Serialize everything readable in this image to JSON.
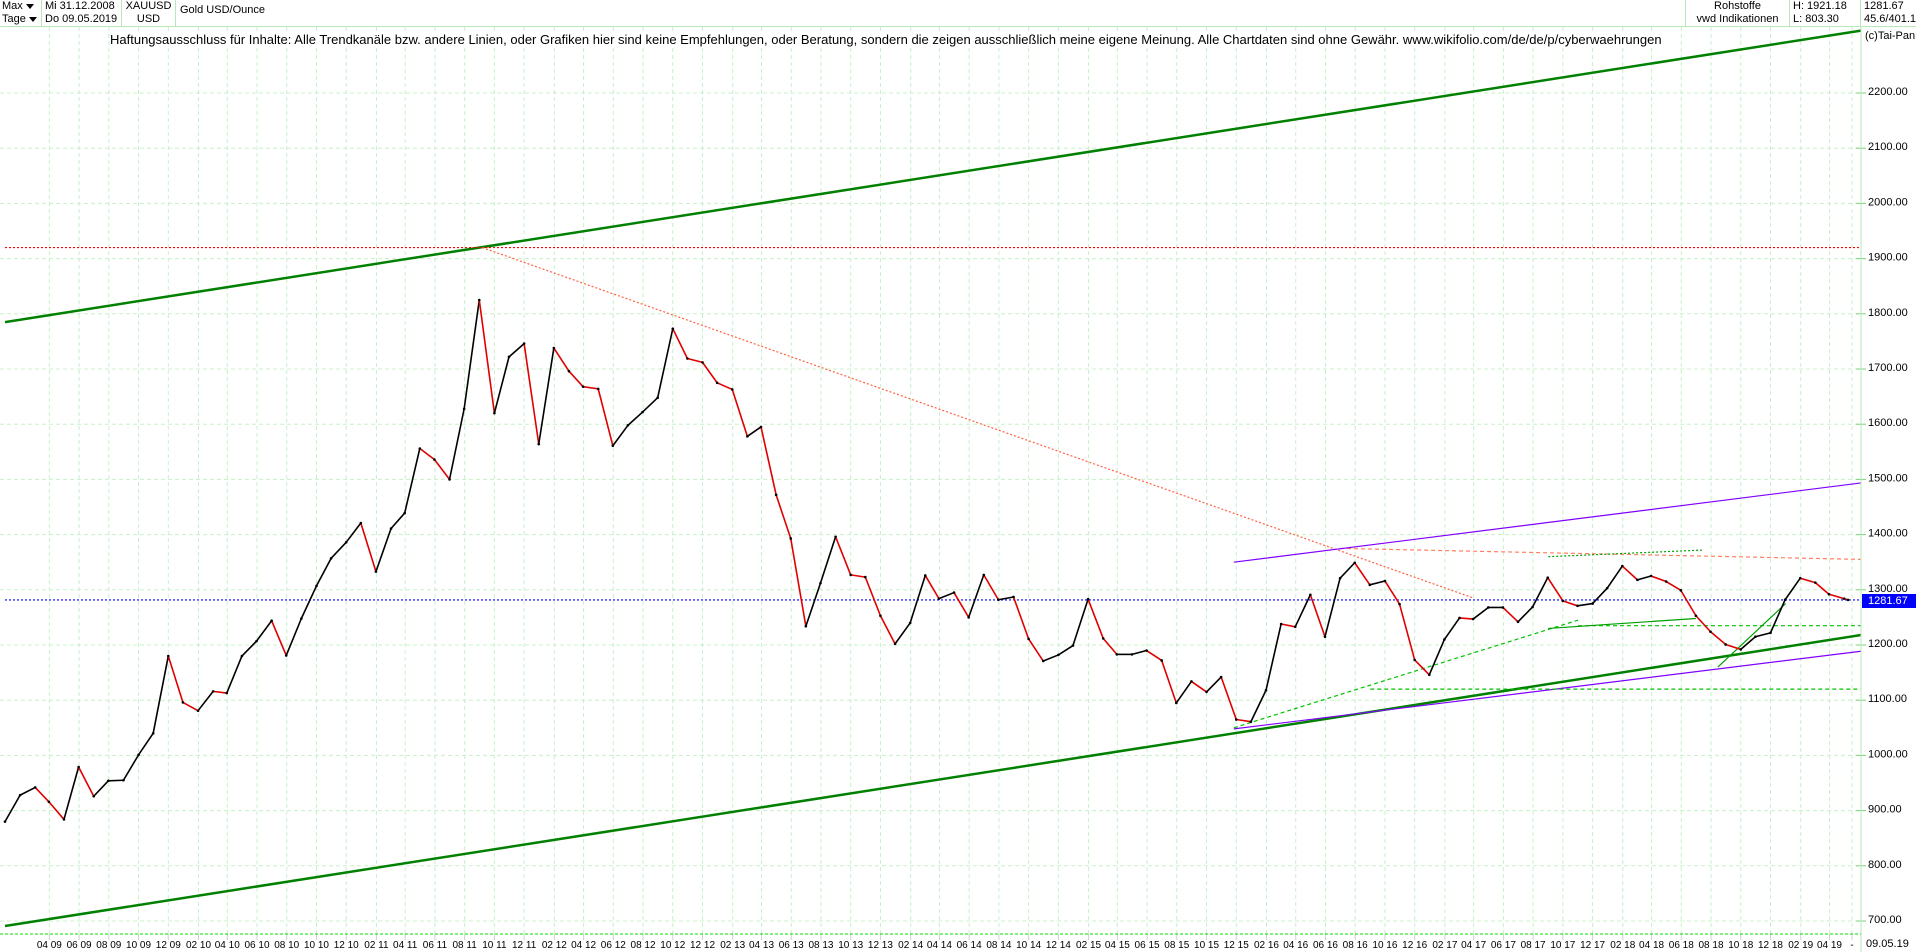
{
  "header": {
    "range_label": "Max",
    "interval_label": "Tage",
    "start_date": "Mi 31.12.2008",
    "end_date": "Do 09.05.2019",
    "symbol": "XAUUSD",
    "currency": "USD",
    "instrument": "Gold USD/Ounce",
    "category": "Rohstoffe",
    "source": "vwd Indikationen",
    "high": "H: 1921.18",
    "low": "L: 803.30",
    "last": "1281.67",
    "extra": "45.6/401.1",
    "copyright": "(c)Tai-Pan"
  },
  "disclaimer": "Haftungsausschluss für Inhalte: Alle Trendkanäle bzw. andere Linien, oder Grafiken hier sind keine Empfehlungen, oder Beratung, sondern die zeigen ausschließlich meine eigene Meinung. Alle Chartdaten sind ohne Gewähr.  www.wikifolio.com/de/de/p/cyberwaehrungen",
  "axis": {
    "current_price_label": "1281.67",
    "end_date_label": "09.05.19"
  },
  "chart_data": {
    "type": "line",
    "title": "Gold USD/Ounce",
    "ylim": [
      680,
      2330
    ],
    "xlim": [
      "2008-12-31",
      "2019-06-15"
    ],
    "y_ticks": [
      "700.00",
      "800.00",
      "900.00",
      "1000.00",
      "1100.00",
      "1200.00",
      "1300.00",
      "1400.00",
      "1500.00",
      "1600.00",
      "1700.00",
      "1800.00",
      "1900.00",
      "2000.00",
      "2100.00",
      "2200.00"
    ],
    "x_tick_labels": [
      "04 09",
      "06 09",
      "08 09",
      "10 09",
      "12 09",
      "02 10",
      "04 10",
      "06 10",
      "08 10",
      "10 10",
      "12 10",
      "02 11",
      "04 11",
      "06 11",
      "08 11",
      "10 11",
      "12 11",
      "02 12",
      "04 12",
      "06 12",
      "08 12",
      "10 12",
      "12 12",
      "02 13",
      "04 13",
      "06 13",
      "08 13",
      "10 13",
      "12 13",
      "02 14",
      "04 14",
      "06 14",
      "08 14",
      "10 14",
      "12 14",
      "02 15",
      "04 15",
      "06 15",
      "08 15",
      "10 15",
      "12 15",
      "02 16",
      "04 16",
      "06 16",
      "08 16",
      "10 16",
      "12 16",
      "02 17",
      "04 17",
      "06 17",
      "08 17",
      "10 17",
      "12 17",
      "02 18",
      "04 18",
      "06 18",
      "08 18",
      "10 18",
      "12 18",
      "02 19",
      "04 19",
      "-"
    ],
    "grid": true,
    "series": [
      {
        "start": "2008-12-31",
        "frequency": "monthly",
        "values": [
          880,
          928,
          942,
          916,
          884,
          979,
          926,
          954,
          955,
          1001,
          1040,
          1180,
          1096,
          1081,
          1116,
          1113,
          1180,
          1207,
          1244,
          1181,
          1248,
          1307,
          1357,
          1386,
          1421,
          1333,
          1411,
          1439,
          1556,
          1536,
          1500,
          1628,
          1825,
          1620,
          1722,
          1746,
          1564,
          1738,
          1696,
          1668,
          1664,
          1561,
          1598,
          1622,
          1648,
          1773,
          1719,
          1712,
          1675,
          1663,
          1578,
          1595,
          1472,
          1393,
          1234,
          1312,
          1396,
          1327,
          1323,
          1253,
          1202,
          1240,
          1326,
          1284,
          1295,
          1250,
          1327,
          1282,
          1287,
          1211,
          1171,
          1182,
          1199,
          1283,
          1212,
          1183,
          1183,
          1190,
          1172,
          1095,
          1134,
          1115,
          1142,
          1065,
          1061,
          1118,
          1238,
          1233,
          1291,
          1215,
          1321,
          1349,
          1309,
          1316,
          1274,
          1173,
          1146,
          1210,
          1249,
          1247,
          1268,
          1268,
          1242,
          1269,
          1322,
          1280,
          1271,
          1275,
          1303,
          1343,
          1318,
          1325,
          1315,
          1299,
          1253,
          1224,
          1201,
          1192,
          1215,
          1222,
          1282,
          1321,
          1313,
          1292,
          1284,
          1281.67
        ]
      }
    ],
    "high": 1921.18,
    "low": 803.3,
    "last": 1281.67,
    "trendlines": [
      {
        "color": "#008000",
        "style": "solid",
        "from": [
          "2008-12-31",
          1785
        ],
        "to": [
          "2019-08-01",
          2321
        ]
      },
      {
        "color": "#008000",
        "style": "solid",
        "from": [
          "2008-12-31",
          691
        ],
        "to": [
          "2019-08-01",
          1226
        ]
      },
      {
        "color": "#ff0000",
        "style": "dotted",
        "from": [
          "2008-12-31",
          1920
        ],
        "to": [
          "2019-08-01",
          1920
        ]
      },
      {
        "color": "#0000ff",
        "style": "dotted",
        "from": [
          "2008-12-31",
          1281.67
        ],
        "to": [
          "2019-08-01",
          1281.67
        ]
      },
      {
        "color": "#ff6040",
        "style": "dotted",
        "from": [
          "2011-09-06",
          1920
        ],
        "to": [
          "2017-04-01",
          1285
        ]
      },
      {
        "color": "#ff8060",
        "style": "dashed",
        "from": [
          "2016-07-01",
          1375
        ],
        "to": [
          "2019-08-01",
          1354
        ]
      },
      {
        "color": "#8000ff",
        "style": "solid",
        "from": [
          "2015-11-26",
          1350
        ],
        "to": [
          "2019-08-01",
          1500
        ]
      },
      {
        "color": "#8000ff",
        "style": "solid",
        "from": [
          "2015-11-26",
          1048
        ],
        "to": [
          "2019-08-01",
          1195
        ]
      },
      {
        "color": "#00c000",
        "style": "dashed",
        "from": [
          "2015-11-26",
          1050
        ],
        "to": [
          "2017-11-01",
          1245
        ]
      },
      {
        "color": "#00c000",
        "style": "dashed",
        "from": [
          "2017-11-01",
          1235
        ],
        "to": [
          "2019-08-01",
          1235
        ]
      },
      {
        "color": "#00c000",
        "style": "dashed",
        "from": [
          "2016-09-01",
          1120
        ],
        "to": [
          "2019-08-01",
          1120
        ]
      },
      {
        "color": "#00a000",
        "style": "solid",
        "from": [
          "2017-09-01",
          1230
        ],
        "to": [
          "2018-07-01",
          1248
        ]
      },
      {
        "color": "#00a000",
        "style": "dotted",
        "from": [
          "2017-09-01",
          1360
        ],
        "to": [
          "2018-07-15",
          1372
        ]
      },
      {
        "color": "#00a000",
        "style": "solid",
        "from": [
          "2018-08-15",
          1160
        ],
        "to": [
          "2019-01-01",
          1275
        ]
      }
    ]
  }
}
